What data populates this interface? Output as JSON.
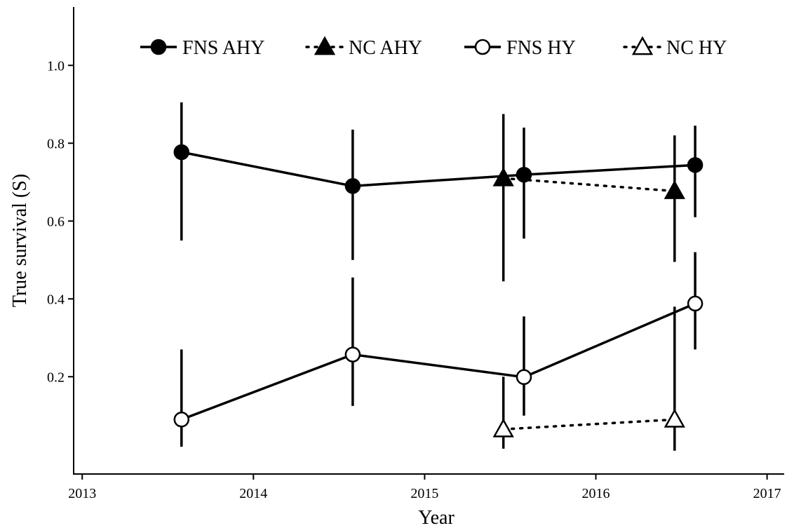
{
  "chart_data": {
    "type": "line",
    "title": "",
    "xlabel": "Year",
    "ylabel": "True survival (S)",
    "xlim": [
      2012.95,
      2017.1
    ],
    "ylim": [
      -0.05,
      1.15
    ],
    "x_ticks": [
      "2013",
      "2014",
      "2015",
      "2016",
      "2017"
    ],
    "y_ticks": [
      "0.2",
      "0.4",
      "0.6",
      "0.8",
      "1.0"
    ],
    "grid": false,
    "legend_position": "top",
    "series": [
      {
        "name": "FNS AHY",
        "marker": "filled-circle",
        "line": "solid",
        "x": [
          2013.58,
          2014.58,
          2015.58,
          2016.58
        ],
        "y": [
          0.777,
          0.69,
          0.719,
          0.744
        ],
        "lower": [
          0.55,
          0.5,
          0.555,
          0.61
        ],
        "upper": [
          0.905,
          0.835,
          0.84,
          0.845
        ]
      },
      {
        "name": "NC AHY",
        "marker": "filled-triangle",
        "line": "dotted",
        "x": [
          2015.46,
          2016.46
        ],
        "y": [
          0.71,
          0.677
        ],
        "lower": [
          0.445,
          0.495
        ],
        "upper": [
          0.875,
          0.82
        ]
      },
      {
        "name": "FNS HY",
        "marker": "open-circle",
        "line": "solid",
        "x": [
          2013.58,
          2014.58,
          2015.58,
          2016.58
        ],
        "y": [
          0.09,
          0.257,
          0.199,
          0.388
        ],
        "lower": [
          0.02,
          0.125,
          0.1,
          0.27
        ],
        "upper": [
          0.27,
          0.455,
          0.355,
          0.52
        ]
      },
      {
        "name": "NC HY",
        "marker": "open-triangle",
        "line": "dotted",
        "x": [
          2015.46,
          2016.46
        ],
        "y": [
          0.065,
          0.09
        ],
        "lower": [
          0.015,
          0.01
        ],
        "upper": [
          0.2,
          0.38
        ]
      }
    ]
  }
}
